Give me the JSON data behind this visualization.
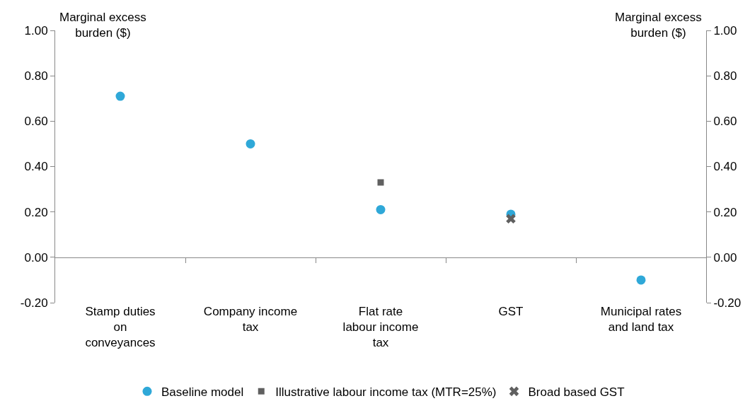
{
  "chart_data": {
    "type": "scatter",
    "categories": [
      "Stamp duties\non\nconveyances",
      "Company income\ntax",
      "Flat rate\nlabour income\ntax",
      "GST",
      "Municipal rates\nand land tax"
    ],
    "ylabel": "Marginal excess\nburden ($)",
    "y2label": "Marginal excess\nburden ($)",
    "ylim": [
      -0.2,
      1.0
    ],
    "yticks": [
      {
        "value": -0.2,
        "label": "-0.20"
      },
      {
        "value": 0,
        "label": "0.00"
      },
      {
        "value": 0.2,
        "label": "0.20"
      },
      {
        "value": 0.4,
        "label": "0.40"
      },
      {
        "value": 0.6,
        "label": "0.60"
      },
      {
        "value": 0.8,
        "label": "0.80"
      },
      {
        "value": 1.0,
        "label": "1.00"
      }
    ],
    "y2lim": [
      -0.2,
      1.0
    ],
    "y2ticks": [
      {
        "value": -0.2,
        "label": "-0.20"
      },
      {
        "value": 0,
        "label": "0.00"
      },
      {
        "value": 0.2,
        "label": "0.20"
      },
      {
        "value": 0.4,
        "label": "0.40"
      },
      {
        "value": 0.6,
        "label": "0.60"
      },
      {
        "value": 0.8,
        "label": "0.80"
      },
      {
        "value": 1.0,
        "label": "1.00"
      }
    ],
    "series": [
      {
        "name": "Baseline model",
        "color": "#2fa8d8",
        "marker": "circle",
        "x": [
          "Stamp duties\non\nconveyances",
          "Company income\ntax",
          "Flat rate\nlabour income\ntax",
          "GST",
          "Municipal rates\nand land tax"
        ],
        "values": [
          0.71,
          0.5,
          0.21,
          0.19,
          -0.1
        ]
      },
      {
        "name": "Illustrative labour income tax (MTR=25%)",
        "color": "#606060",
        "marker": "square",
        "x": [
          "Flat rate\nlabour income\ntax"
        ],
        "values": [
          0.33
        ]
      },
      {
        "name": "Broad based GST",
        "color": "#606060",
        "marker": "cross",
        "x": [
          "GST"
        ],
        "values": [
          0.17
        ]
      }
    ],
    "ref_lines": [
      {
        "axis": "y",
        "value": 0,
        "color": "#888888"
      }
    ],
    "grid": false,
    "legend": "bottom"
  }
}
